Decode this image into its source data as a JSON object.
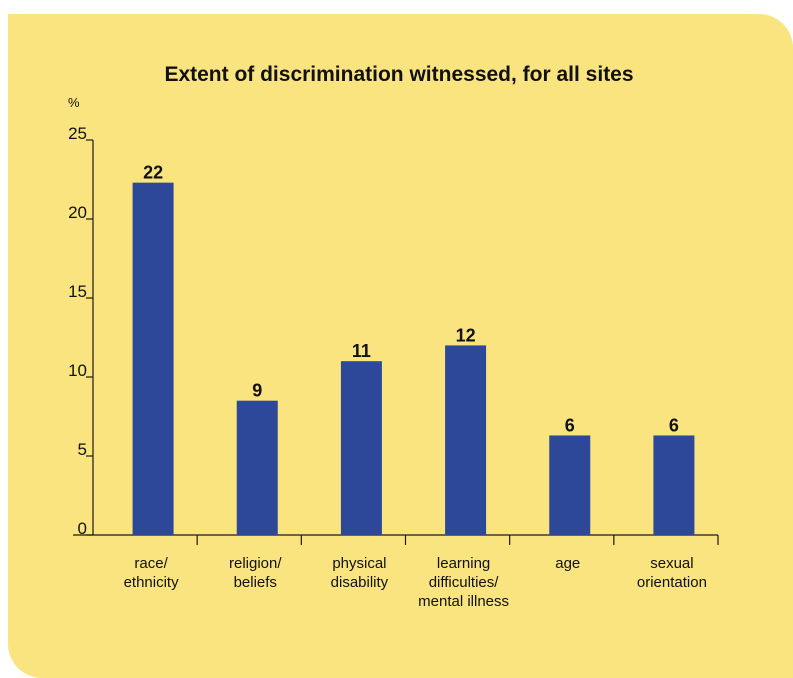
{
  "colors": {
    "background": "#f9e47f",
    "bar": "#2d4898",
    "axis": "#1a1a1a"
  },
  "chart_data": {
    "type": "bar",
    "title": "Extent of discrimination witnessed, for all sites",
    "ylabel": "%",
    "xlabel": "",
    "ylim": [
      0,
      25
    ],
    "yticks": [
      "0",
      "5",
      "10",
      "15",
      "20",
      "25"
    ],
    "categories": [
      [
        "race/",
        "ethnicity"
      ],
      [
        "religion/",
        "beliefs"
      ],
      [
        "physical",
        "disability"
      ],
      [
        "learning",
        "difficulties/",
        "mental illness"
      ],
      [
        "age"
      ],
      [
        "sexual",
        "orientation"
      ]
    ],
    "values": [
      22,
      9,
      11,
      12,
      6,
      6
    ],
    "value_labels": [
      "22",
      "9",
      "11",
      "12",
      "6",
      "6"
    ],
    "bar_heights": [
      22.3,
      8.5,
      11,
      12,
      6.3,
      6.3
    ],
    "grid": false,
    "legend": "none"
  }
}
